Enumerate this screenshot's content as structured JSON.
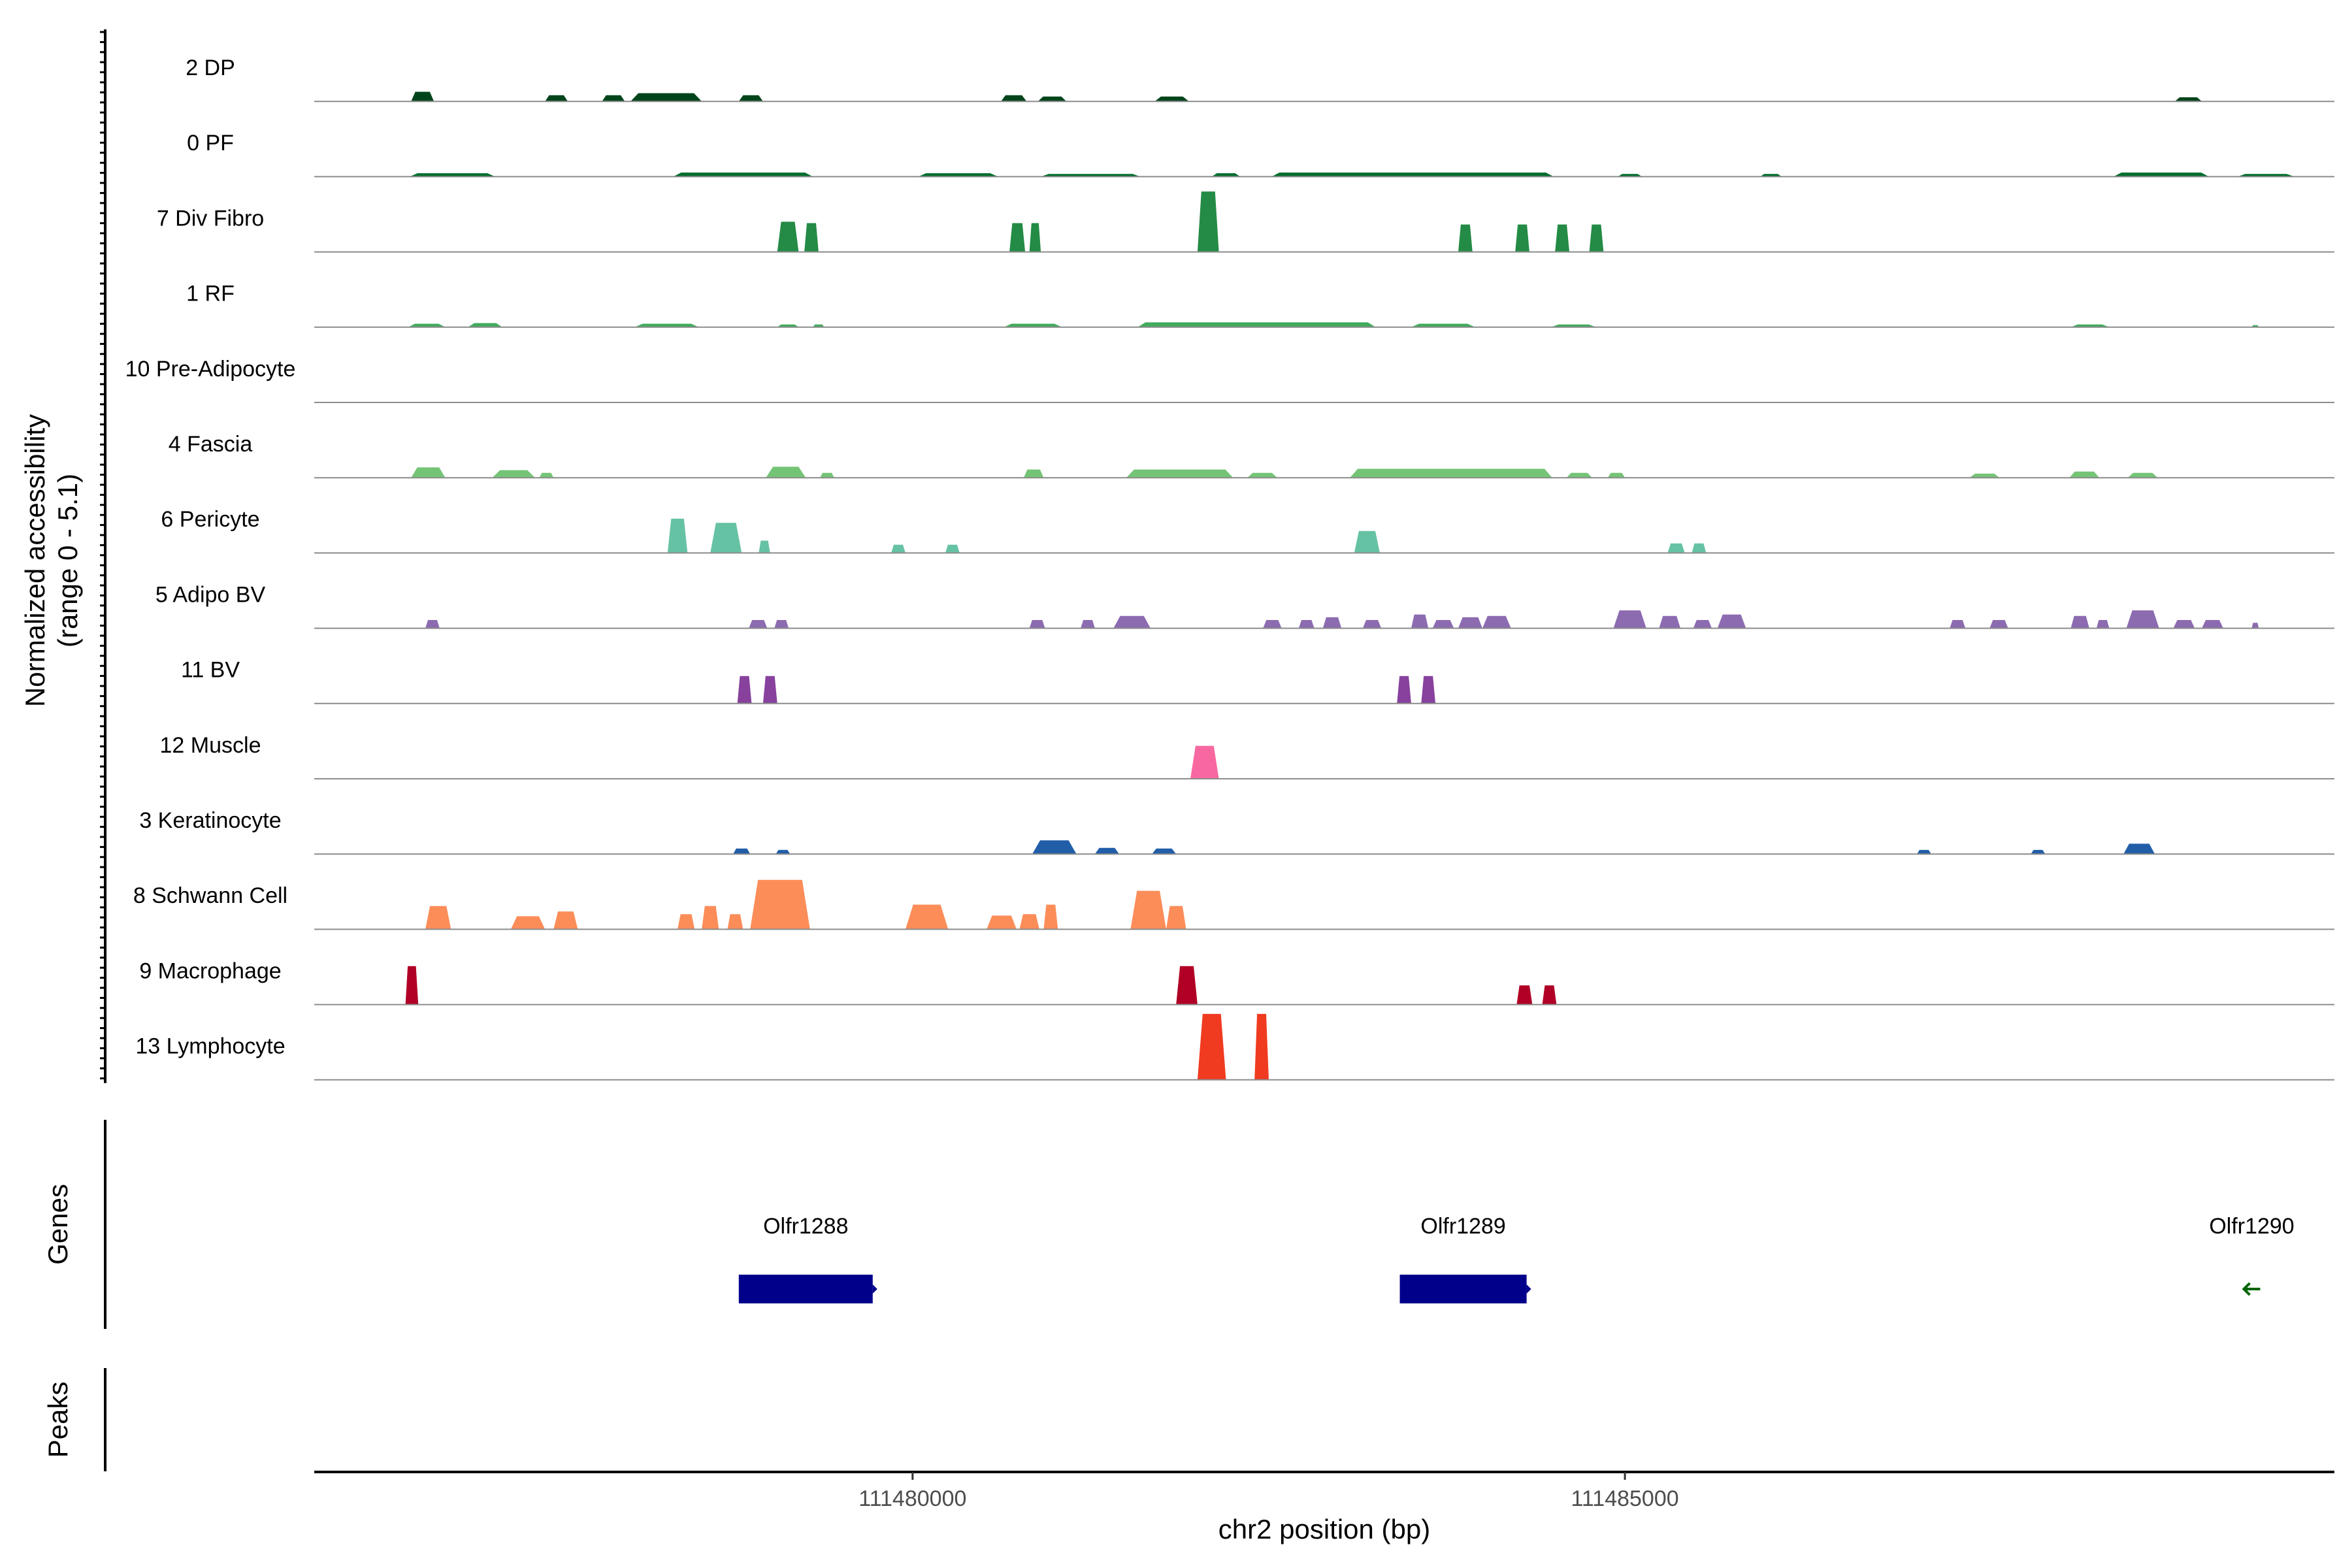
{
  "chart_data": {
    "type": "area",
    "xlabel": "chr2 position (bp)",
    "ylabel": [
      "Normalized accessibility",
      "(range 0 - 5.1)"
    ],
    "ylim": [
      0,
      5.1
    ],
    "xlim": [
      111475800,
      111489980
    ],
    "x_ticks": [
      111480000,
      111485000
    ],
    "x_tick_labels": [
      "111480000",
      "111485000"
    ],
    "tracks": [
      {
        "name": "2 DP",
        "color": "#00441b",
        "peaks": [
          {
            "start": 111476480,
            "end": 111476640,
            "height": 0.7
          },
          {
            "start": 111477420,
            "end": 111477580,
            "height": 0.45
          },
          {
            "start": 111477820,
            "end": 111477980,
            "height": 0.45
          },
          {
            "start": 111478020,
            "end": 111478520,
            "height": 0.6
          },
          {
            "start": 111478780,
            "end": 111478950,
            "height": 0.45
          },
          {
            "start": 111480620,
            "end": 111480800,
            "height": 0.45
          },
          {
            "start": 111480880,
            "end": 111481080,
            "height": 0.35
          },
          {
            "start": 111481700,
            "end": 111481940,
            "height": 0.35
          },
          {
            "start": 111488860,
            "end": 111489050,
            "height": 0.3
          }
        ]
      },
      {
        "name": "0 PF",
        "color": "#006d2c",
        "peaks": [
          {
            "start": 111476470,
            "end": 111477070,
            "height": 0.25
          },
          {
            "start": 111478320,
            "end": 111479300,
            "height": 0.3
          },
          {
            "start": 111480040,
            "end": 111480600,
            "height": 0.25
          },
          {
            "start": 111480900,
            "end": 111481600,
            "height": 0.2
          },
          {
            "start": 111482100,
            "end": 111482300,
            "height": 0.25
          },
          {
            "start": 111482520,
            "end": 111484500,
            "height": 0.3
          },
          {
            "start": 111484950,
            "end": 111485120,
            "height": 0.2
          },
          {
            "start": 111485950,
            "end": 111486100,
            "height": 0.2
          },
          {
            "start": 111488430,
            "end": 111489100,
            "height": 0.3
          },
          {
            "start": 111489300,
            "end": 111489700,
            "height": 0.2
          }
        ]
      },
      {
        "name": "7 Div Fibro",
        "color": "#238b45",
        "peaks": [
          {
            "start": 111479050,
            "end": 111479200,
            "height": 2.2
          },
          {
            "start": 111479240,
            "end": 111479340,
            "height": 2.1
          },
          {
            "start": 111480680,
            "end": 111480790,
            "height": 2.1
          },
          {
            "start": 111480820,
            "end": 111480900,
            "height": 2.1
          },
          {
            "start": 111482000,
            "end": 111482150,
            "height": 4.4
          },
          {
            "start": 111483830,
            "end": 111483930,
            "height": 2.0
          },
          {
            "start": 111484230,
            "end": 111484330,
            "height": 2.0
          },
          {
            "start": 111484510,
            "end": 111484610,
            "height": 2.0
          },
          {
            "start": 111484750,
            "end": 111484850,
            "height": 2.0
          }
        ]
      },
      {
        "name": "1 RF",
        "color": "#41ab5d",
        "peaks": [
          {
            "start": 111476460,
            "end": 111476720,
            "height": 0.25
          },
          {
            "start": 111476880,
            "end": 111477120,
            "height": 0.3
          },
          {
            "start": 111478050,
            "end": 111478500,
            "height": 0.25
          },
          {
            "start": 111479050,
            "end": 111479200,
            "height": 0.2
          },
          {
            "start": 111479300,
            "end": 111479380,
            "height": 0.2
          },
          {
            "start": 111480640,
            "end": 111481050,
            "height": 0.25
          },
          {
            "start": 111481580,
            "end": 111483250,
            "height": 0.35
          },
          {
            "start": 111483500,
            "end": 111483950,
            "height": 0.25
          },
          {
            "start": 111484480,
            "end": 111484800,
            "height": 0.2
          },
          {
            "start": 111488130,
            "end": 111488400,
            "height": 0.2
          },
          {
            "start": 111489400,
            "end": 111489450,
            "height": 0.15
          }
        ]
      },
      {
        "name": "10 Pre-Adipocyte",
        "color": "#74c476",
        "peaks": []
      },
      {
        "name": "4 Fascia",
        "color": "#74c476",
        "peaks": [
          {
            "start": 111476480,
            "end": 111476720,
            "height": 0.75
          },
          {
            "start": 111477050,
            "end": 111477350,
            "height": 0.55
          },
          {
            "start": 111477380,
            "end": 111477480,
            "height": 0.35
          },
          {
            "start": 111478970,
            "end": 111479250,
            "height": 0.8
          },
          {
            "start": 111479350,
            "end": 111479450,
            "height": 0.35
          },
          {
            "start": 111480780,
            "end": 111480920,
            "height": 0.6
          },
          {
            "start": 111481500,
            "end": 111482250,
            "height": 0.6
          },
          {
            "start": 111482350,
            "end": 111482560,
            "height": 0.35
          },
          {
            "start": 111483070,
            "end": 111484490,
            "height": 0.65
          },
          {
            "start": 111484590,
            "end": 111484770,
            "height": 0.35
          },
          {
            "start": 111484880,
            "end": 111485000,
            "height": 0.35
          },
          {
            "start": 111487420,
            "end": 111487630,
            "height": 0.3
          },
          {
            "start": 111488120,
            "end": 111488330,
            "height": 0.45
          },
          {
            "start": 111488530,
            "end": 111488740,
            "height": 0.35
          }
        ]
      },
      {
        "name": "6 Pericyte",
        "color": "#66c2a4",
        "peaks": [
          {
            "start": 111478280,
            "end": 111478420,
            "height": 2.5
          },
          {
            "start": 111478580,
            "end": 111478800,
            "height": 2.2
          },
          {
            "start": 111478920,
            "end": 111479000,
            "height": 0.9
          },
          {
            "start": 111479850,
            "end": 111479950,
            "height": 0.6
          },
          {
            "start": 111480230,
            "end": 111480330,
            "height": 0.6
          },
          {
            "start": 111483100,
            "end": 111483280,
            "height": 1.6
          },
          {
            "start": 111485300,
            "end": 111485420,
            "height": 0.7
          },
          {
            "start": 111485470,
            "end": 111485570,
            "height": 0.7
          }
        ]
      },
      {
        "name": "5 Adipo BV",
        "color": "#8c6bb1",
        "peaks": [
          {
            "start": 111476580,
            "end": 111476680,
            "height": 0.6
          },
          {
            "start": 111478850,
            "end": 111478980,
            "height": 0.6
          },
          {
            "start": 111479030,
            "end": 111479130,
            "height": 0.6
          },
          {
            "start": 111480820,
            "end": 111480930,
            "height": 0.6
          },
          {
            "start": 111481180,
            "end": 111481280,
            "height": 0.6
          },
          {
            "start": 111481410,
            "end": 111481670,
            "height": 0.9
          },
          {
            "start": 111482460,
            "end": 111482590,
            "height": 0.6
          },
          {
            "start": 111482710,
            "end": 111482820,
            "height": 0.6
          },
          {
            "start": 111482880,
            "end": 111483010,
            "height": 0.8
          },
          {
            "start": 111483160,
            "end": 111483290,
            "height": 0.6
          },
          {
            "start": 111483500,
            "end": 111483620,
            "height": 1.0
          },
          {
            "start": 111483650,
            "end": 111483800,
            "height": 0.6
          },
          {
            "start": 111483830,
            "end": 111484000,
            "height": 0.8
          },
          {
            "start": 111484000,
            "end": 111484200,
            "height": 0.9
          },
          {
            "start": 111484920,
            "end": 111485150,
            "height": 1.3
          },
          {
            "start": 111485240,
            "end": 111485390,
            "height": 0.9
          },
          {
            "start": 111485480,
            "end": 111485610,
            "height": 0.6
          },
          {
            "start": 111485650,
            "end": 111485850,
            "height": 1.0
          },
          {
            "start": 111487280,
            "end": 111487390,
            "height": 0.6
          },
          {
            "start": 111487560,
            "end": 111487690,
            "height": 0.6
          },
          {
            "start": 111488130,
            "end": 111488260,
            "height": 0.9
          },
          {
            "start": 111488310,
            "end": 111488400,
            "height": 0.6
          },
          {
            "start": 111488520,
            "end": 111488750,
            "height": 1.3
          },
          {
            "start": 111488850,
            "end": 111489000,
            "height": 0.6
          },
          {
            "start": 111489050,
            "end": 111489200,
            "height": 0.6
          },
          {
            "start": 111489400,
            "end": 111489450,
            "height": 0.4
          }
        ]
      },
      {
        "name": "11 BV",
        "color": "#88419d",
        "peaks": [
          {
            "start": 111478770,
            "end": 111478870,
            "height": 2.0
          },
          {
            "start": 111478950,
            "end": 111479050,
            "height": 2.0
          },
          {
            "start": 111483400,
            "end": 111483500,
            "height": 2.0
          },
          {
            "start": 111483570,
            "end": 111483670,
            "height": 2.0
          }
        ]
      },
      {
        "name": "12 Muscle",
        "color": "#f768a1",
        "peaks": [
          {
            "start": 111481950,
            "end": 111482150,
            "height": 2.4
          }
        ]
      },
      {
        "name": "3 Keratinocyte",
        "color": "#225ea8",
        "peaks": [
          {
            "start": 111478740,
            "end": 111478860,
            "height": 0.4
          },
          {
            "start": 111479040,
            "end": 111479140,
            "height": 0.3
          },
          {
            "start": 111480840,
            "end": 111481150,
            "height": 1.0
          },
          {
            "start": 111481280,
            "end": 111481450,
            "height": 0.45
          },
          {
            "start": 111481680,
            "end": 111481850,
            "height": 0.4
          },
          {
            "start": 111487050,
            "end": 111487150,
            "height": 0.3
          },
          {
            "start": 111487850,
            "end": 111487950,
            "height": 0.3
          },
          {
            "start": 111488500,
            "end": 111488720,
            "height": 0.75
          }
        ]
      },
      {
        "name": "8 Schwann Cell",
        "color": "#fc8d59",
        "peaks": [
          {
            "start": 111476580,
            "end": 111476760,
            "height": 1.7
          },
          {
            "start": 111477180,
            "end": 111477420,
            "height": 0.95
          },
          {
            "start": 111477480,
            "end": 111477650,
            "height": 1.3
          },
          {
            "start": 111478350,
            "end": 111478470,
            "height": 1.1
          },
          {
            "start": 111478520,
            "end": 111478640,
            "height": 1.7
          },
          {
            "start": 111478700,
            "end": 111478810,
            "height": 1.1
          },
          {
            "start": 111478860,
            "end": 111479280,
            "height": 3.6
          },
          {
            "start": 111479950,
            "end": 111480250,
            "height": 1.8
          },
          {
            "start": 111480520,
            "end": 111480730,
            "height": 1.0
          },
          {
            "start": 111480750,
            "end": 111480890,
            "height": 1.1
          },
          {
            "start": 111480920,
            "end": 111481020,
            "height": 1.8
          },
          {
            "start": 111481530,
            "end": 111481780,
            "height": 2.8
          },
          {
            "start": 111481780,
            "end": 111481920,
            "height": 1.7
          }
        ]
      },
      {
        "name": "9 Macrophage",
        "color": "#b10026",
        "peaks": [
          {
            "start": 111476440,
            "end": 111476530,
            "height": 2.8
          },
          {
            "start": 111481850,
            "end": 111482000,
            "height": 2.8
          },
          {
            "start": 111484240,
            "end": 111484350,
            "height": 1.4
          },
          {
            "start": 111484420,
            "end": 111484520,
            "height": 1.4
          }
        ]
      },
      {
        "name": "13 Lymphocyte",
        "color": "#f03b20",
        "peaks": [
          {
            "start": 111482000,
            "end": 111482200,
            "height": 4.8
          },
          {
            "start": 111482400,
            "end": 111482500,
            "height": 4.8
          }
        ]
      }
    ],
    "genes_label": "Genes",
    "peaks_label": "Peaks",
    "genes": [
      {
        "name": "Olfr1288",
        "start": 111478780,
        "end": 111479720,
        "strand": "+",
        "color": "#00008b"
      },
      {
        "name": "Olfr1289",
        "start": 111483420,
        "end": 111484310,
        "strand": "+",
        "color": "#00008b"
      },
      {
        "name": "Olfr1290",
        "start": 111489350,
        "end": 111489450,
        "strand": "-",
        "color": "#006400"
      }
    ]
  }
}
